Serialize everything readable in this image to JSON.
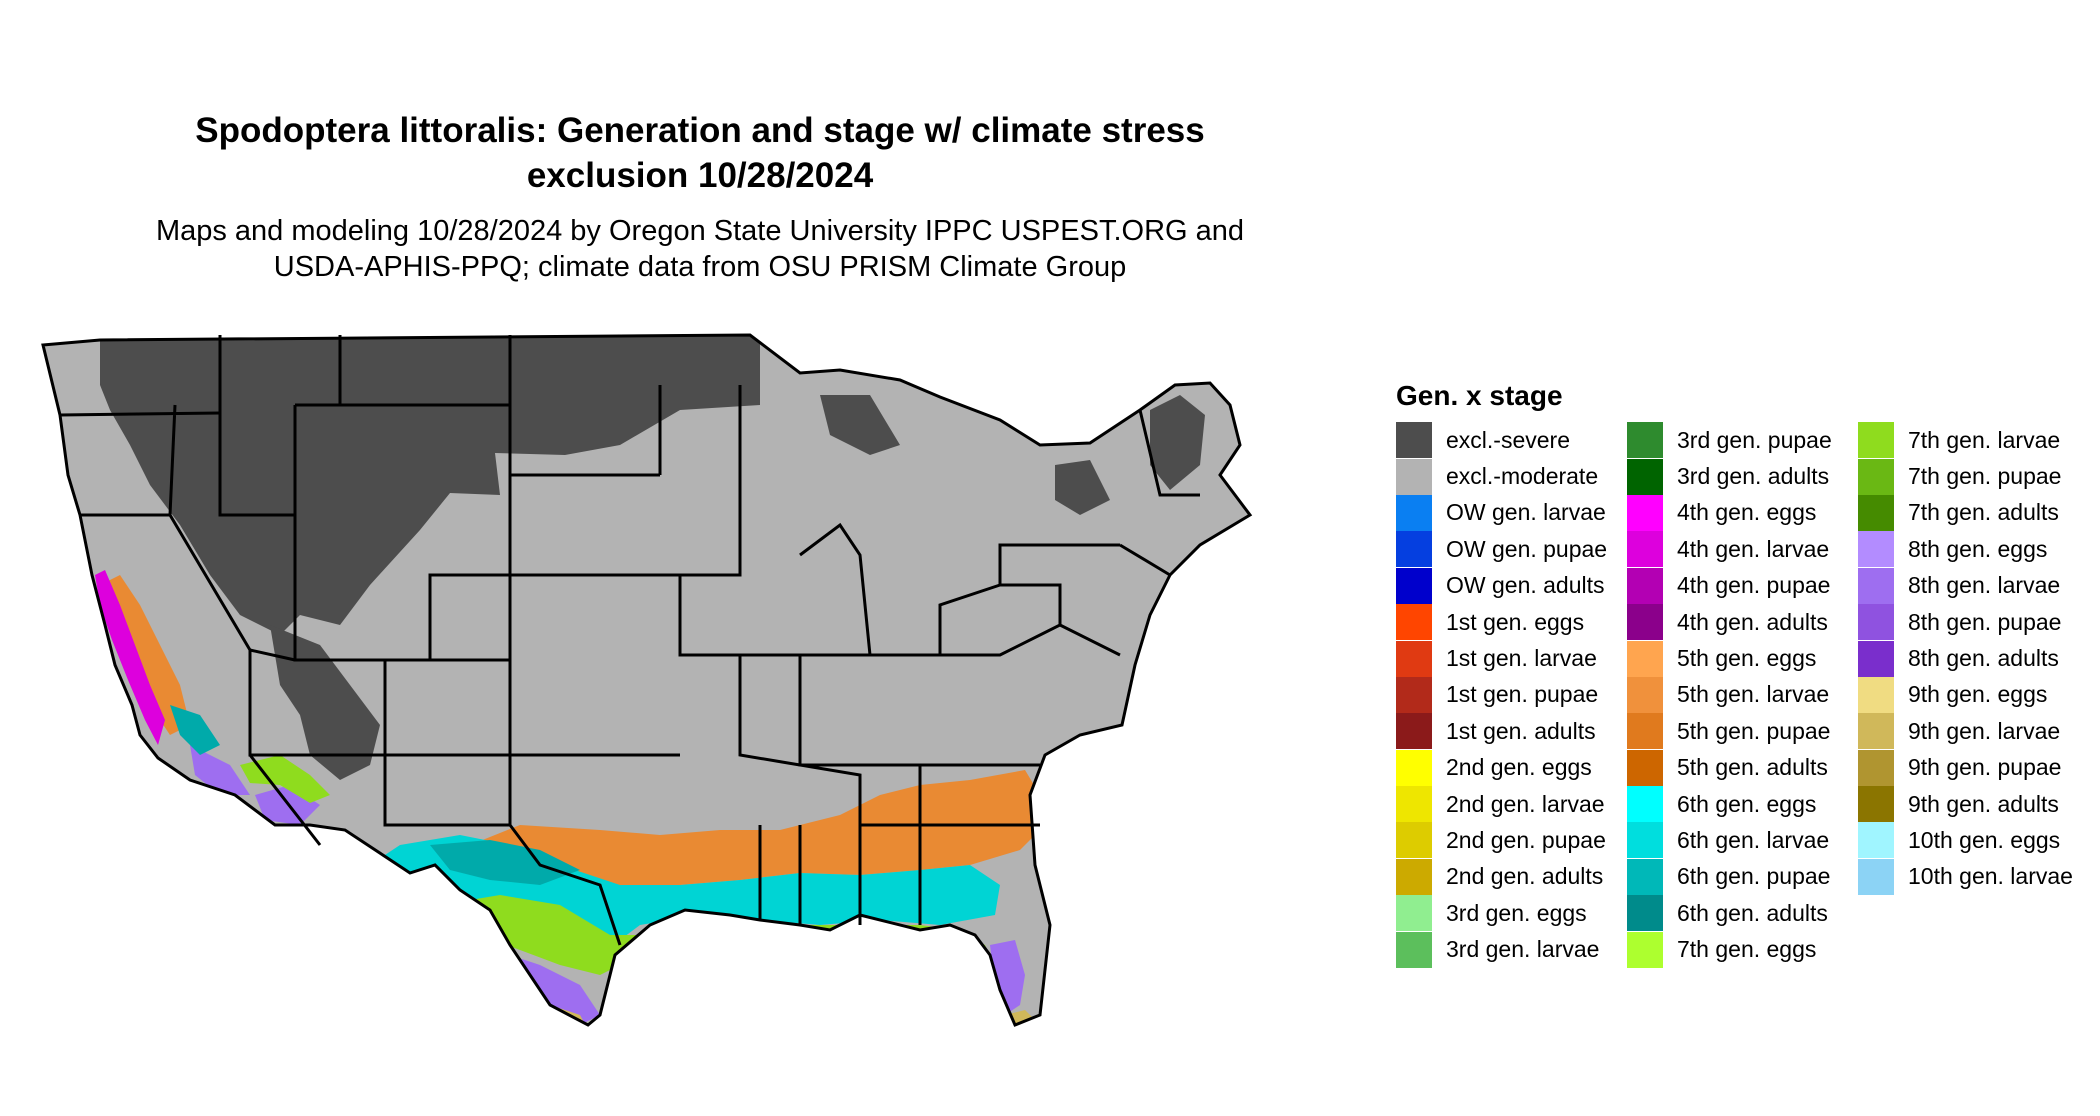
{
  "title_line1": "Spodoptera littoralis: Generation and stage w/ climate stress",
  "title_line2": "exclusion 10/28/2024",
  "subtitle_line1": "Maps and modeling 10/28/2024 by Oregon State University IPPC USPEST.ORG and",
  "subtitle_line2": "USDA-APHIS-PPQ; climate data from OSU PRISM Climate Group",
  "legend": {
    "title": "Gen. x stage",
    "columns": [
      [
        {
          "label": "excl.-severe",
          "color": "#4d4d4d"
        },
        {
          "label": "excl.-moderate",
          "color": "#b3b3b3"
        },
        {
          "label": "OW gen. larvae",
          "color": "#0a7ff2"
        },
        {
          "label": "OW gen. pupae",
          "color": "#053fe0"
        },
        {
          "label": "OW gen. adults",
          "color": "#0000cc"
        },
        {
          "label": "1st gen. eggs",
          "color": "#ff4500"
        },
        {
          "label": "1st gen. larvae",
          "color": "#e03a12"
        },
        {
          "label": "1st gen. pupae",
          "color": "#b22a1a"
        },
        {
          "label": "1st gen. adults",
          "color": "#8b1a1a"
        },
        {
          "label": "2nd gen. eggs",
          "color": "#ffff00"
        },
        {
          "label": "2nd gen. larvae",
          "color": "#eee600"
        },
        {
          "label": "2nd gen. pupae",
          "color": "#ddcc00"
        },
        {
          "label": "2nd gen. adults",
          "color": "#ccaa00"
        },
        {
          "label": "3rd gen. eggs",
          "color": "#90ee90"
        },
        {
          "label": "3rd gen. larvae",
          "color": "#5cbf5c"
        }
      ],
      [
        {
          "label": "3rd gen. pupae",
          "color": "#2e8b2e"
        },
        {
          "label": "3rd gen. adults",
          "color": "#006400"
        },
        {
          "label": "4th gen. eggs",
          "color": "#ff00ff"
        },
        {
          "label": "4th gen. larvae",
          "color": "#dd00dd"
        },
        {
          "label": "4th gen. pupae",
          "color": "#b300b3"
        },
        {
          "label": "4th gen. adults",
          "color": "#8b008b"
        },
        {
          "label": "5th gen. eggs",
          "color": "#ffa54f"
        },
        {
          "label": "5th gen. larvae",
          "color": "#f0913c"
        },
        {
          "label": "5th gen. pupae",
          "color": "#e07a1e"
        },
        {
          "label": "5th gen. adults",
          "color": "#cd6600"
        },
        {
          "label": "6th gen. eggs",
          "color": "#00ffff"
        },
        {
          "label": "6th gen. larvae",
          "color": "#00dede"
        },
        {
          "label": "6th gen. pupae",
          "color": "#00b8b8"
        },
        {
          "label": "6th gen. adults",
          "color": "#008b8b"
        },
        {
          "label": "7th gen. eggs",
          "color": "#adff2f"
        }
      ],
      [
        {
          "label": "7th gen. larvae",
          "color": "#8fdc1e"
        },
        {
          "label": "7th gen. pupae",
          "color": "#6ab814"
        },
        {
          "label": "7th gen. adults",
          "color": "#458b00"
        },
        {
          "label": "8th gen. eggs",
          "color": "#b38cff"
        },
        {
          "label": "8th gen. larvae",
          "color": "#9e6ef0"
        },
        {
          "label": "8th gen. pupae",
          "color": "#8f52e0"
        },
        {
          "label": "8th gen. adults",
          "color": "#7a2ecc"
        },
        {
          "label": "9th gen. eggs",
          "color": "#f0dc82"
        },
        {
          "label": "9th gen. larvae",
          "color": "#d0b85a"
        },
        {
          "label": "9th gen. pupae",
          "color": "#b09530"
        },
        {
          "label": "9th gen. adults",
          "color": "#8b7500"
        },
        {
          "label": "10th gen. eggs",
          "color": "#a0f5ff"
        },
        {
          "label": "10th gen. larvae",
          "color": "#8cd3f5"
        }
      ]
    ]
  }
}
